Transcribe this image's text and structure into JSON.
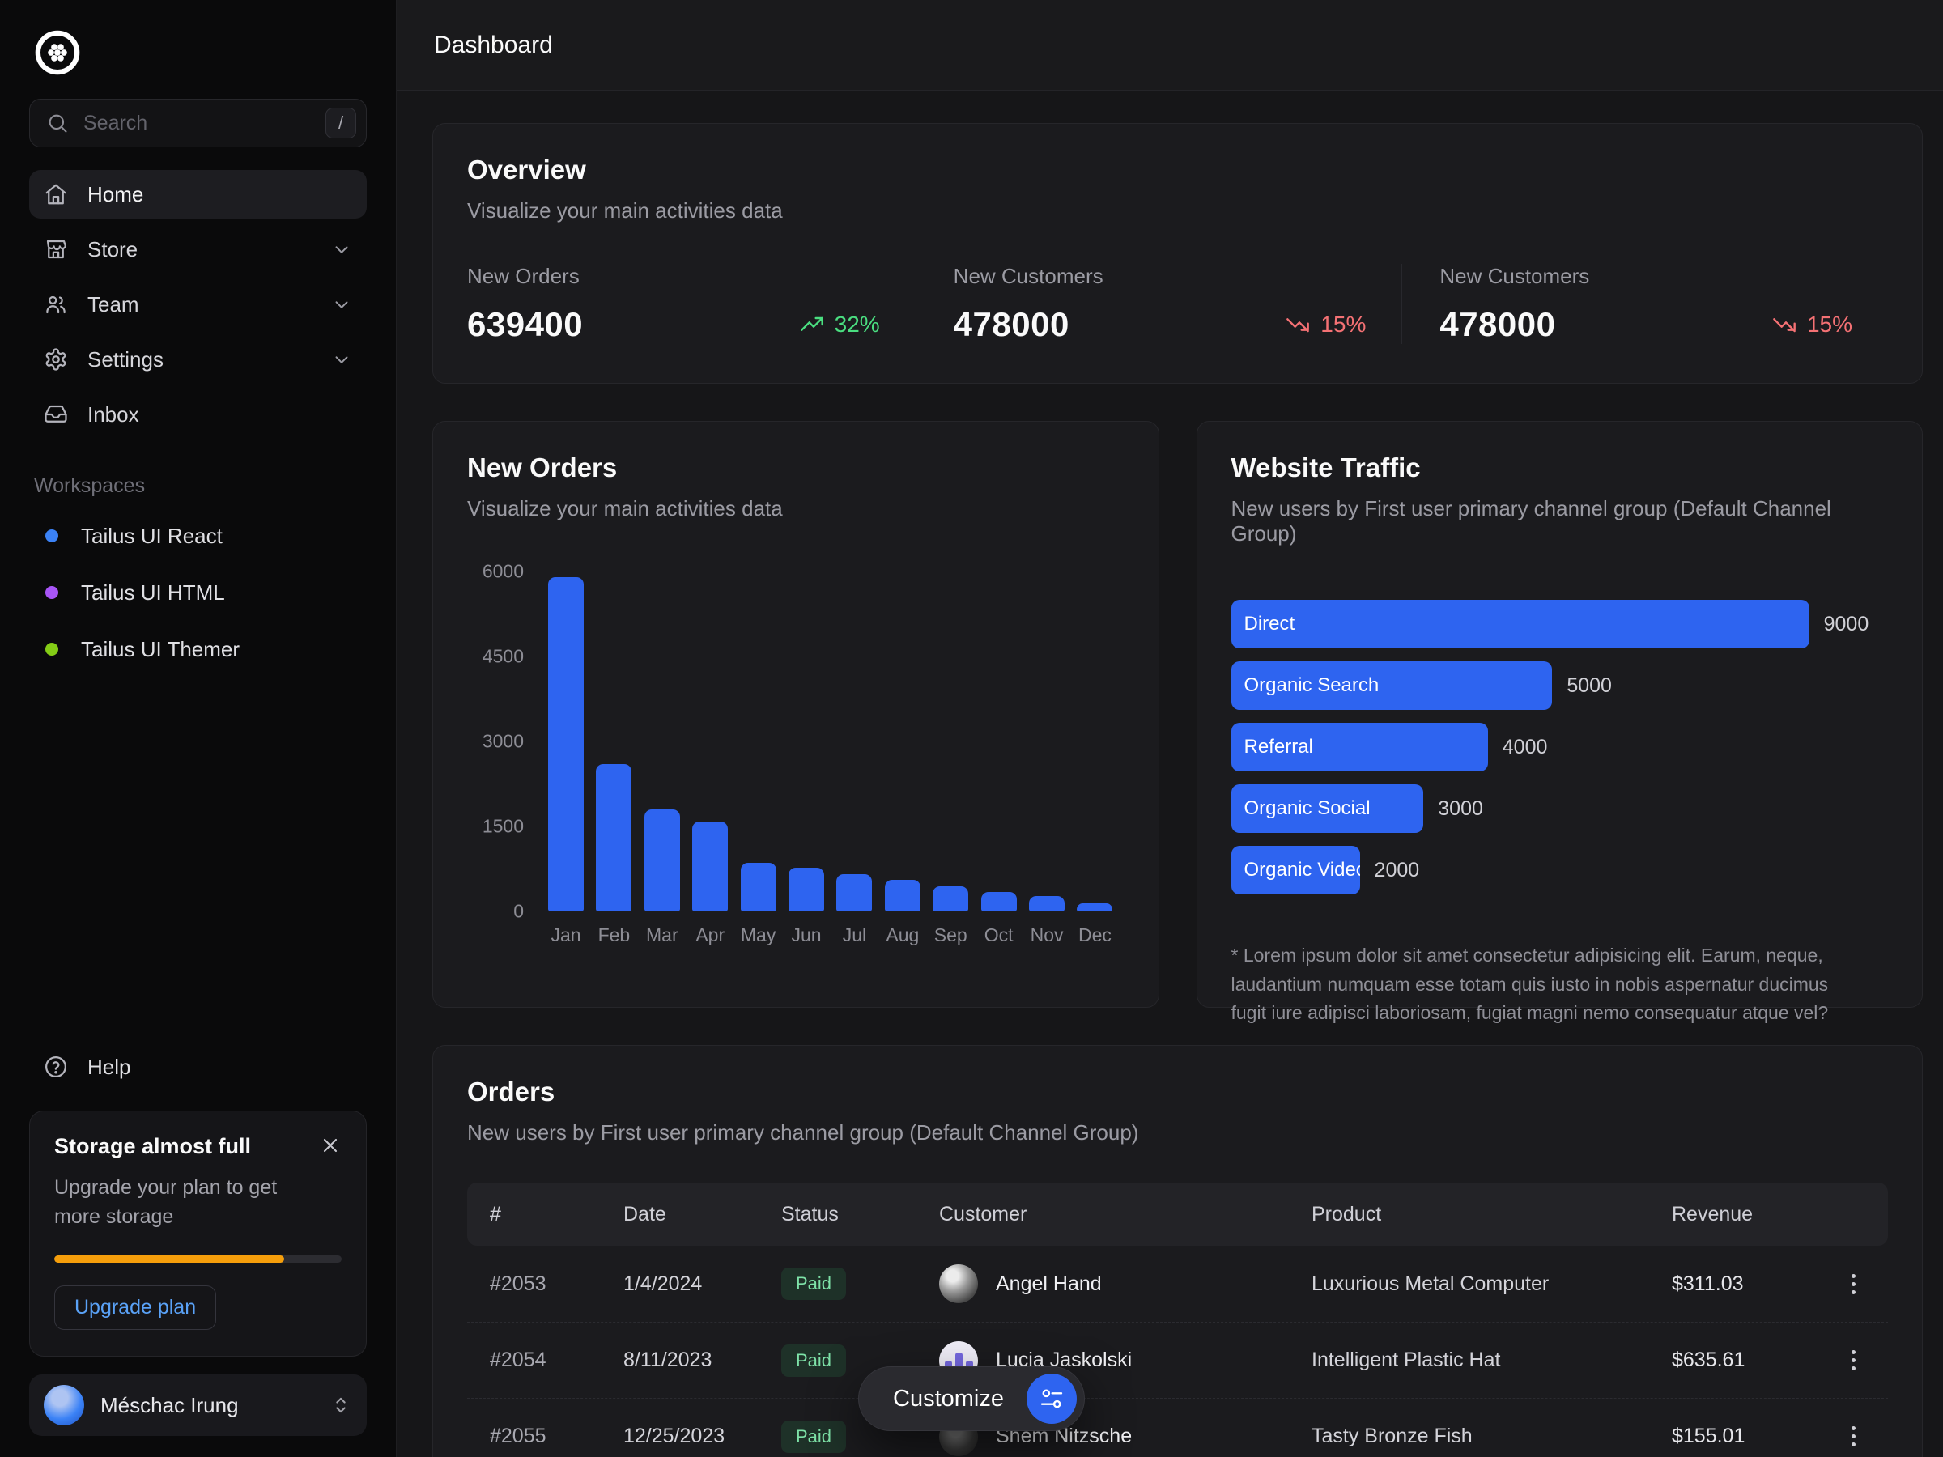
{
  "header": {
    "title": "Dashboard"
  },
  "colors": {
    "accent_blue": "#2e64f0",
    "trend_up_green": "#4ade80",
    "trend_down_red": "#f47174",
    "progress_amber": "#f59e0b"
  },
  "sidebar": {
    "search": {
      "placeholder": "Search",
      "shortcut": "/"
    },
    "nav": [
      {
        "label": "Home",
        "icon": "home",
        "active": true,
        "chevron": false
      },
      {
        "label": "Store",
        "icon": "store",
        "active": false,
        "chevron": true
      },
      {
        "label": "Team",
        "icon": "team",
        "active": false,
        "chevron": true
      },
      {
        "label": "Settings",
        "icon": "settings",
        "active": false,
        "chevron": true
      },
      {
        "label": "Inbox",
        "icon": "inbox",
        "active": false,
        "chevron": false
      }
    ],
    "workspaces_label": "Workspaces",
    "workspaces": [
      {
        "label": "Tailus UI React",
        "dot_color": "#3b82f6"
      },
      {
        "label": "Tailus UI HTML",
        "dot_color": "#a855f7"
      },
      {
        "label": "Tailus UI Themer",
        "dot_color": "#84cc16"
      }
    ],
    "help_label": "Help",
    "storage": {
      "title": "Storage almost full",
      "body": "Upgrade your plan to get more storage",
      "progress_percent": 80,
      "progress_color": "#f59e0b",
      "button_label": "Upgrade plan"
    },
    "user": {
      "name": "Méschac Irung"
    }
  },
  "overview": {
    "title": "Overview",
    "subtitle": "Visualize your main activities data",
    "stats": [
      {
        "label": "New Orders",
        "value": "639400",
        "trend": "32%",
        "direction": "up",
        "color": "#4ade80"
      },
      {
        "label": "New Customers",
        "value": "478000",
        "trend": "15%",
        "direction": "down",
        "color": "#f47174"
      },
      {
        "label": "New Customers",
        "value": "478000",
        "trend": "15%",
        "direction": "down",
        "color": "#f47174"
      }
    ]
  },
  "chart_data": [
    {
      "type": "bar",
      "title": "New Orders",
      "subtitle": "Visualize your main activities data",
      "categories": [
        "Jan",
        "Feb",
        "Mar",
        "Apr",
        "May",
        "Jun",
        "Jul",
        "Aug",
        "Sep",
        "Oct",
        "Nov",
        "Dec"
      ],
      "values": [
        5900,
        2600,
        1800,
        1590,
        860,
        770,
        660,
        560,
        440,
        340,
        270,
        140
      ],
      "xlabel": "",
      "ylabel": "",
      "ylim": [
        0,
        6000
      ],
      "yticks": [
        0,
        1500,
        3000,
        4500,
        6000
      ],
      "grid": "dashed-horizontal",
      "bar_color": "#2e64f0"
    },
    {
      "type": "bar-horizontal",
      "title": "Website Traffic",
      "subtitle": "New users by First user primary channel group (Default Channel Group)",
      "categories": [
        "Direct",
        "Organic Search",
        "Referral",
        "Organic Social",
        "Organic Video"
      ],
      "values": [
        9000,
        5000,
        4000,
        3000,
        2000
      ],
      "xmax": 9000,
      "bar_color": "#2e64f0",
      "footnote": "* Lorem ipsum dolor sit amet consectetur adipisicing elit. Earum, neque, laudantium numquam esse totam quis iusto in nobis aspernatur ducimus fugit iure adipisci laboriosam, fugiat magni nemo consequatur atque vel?"
    }
  ],
  "orders": {
    "title": "Orders",
    "subtitle": "New users by First user primary channel group (Default Channel Group)",
    "columns": [
      "#",
      "Date",
      "Status",
      "Customer",
      "Product",
      "Revenue"
    ],
    "rows": [
      {
        "id": "#2053",
        "date": "1/4/2024",
        "status": "Paid",
        "customer": "Angel Hand",
        "product": "Luxurious Metal Computer",
        "revenue": "$311.03",
        "avatar": "photo-gray"
      },
      {
        "id": "#2054",
        "date": "8/11/2023",
        "status": "Paid",
        "customer": "Lucia Jaskolski",
        "product": "Intelligent Plastic Hat",
        "revenue": "$635.61",
        "avatar": "chart-purple"
      },
      {
        "id": "#2055",
        "date": "12/25/2023",
        "status": "Paid",
        "customer": "Shem Nitzsche",
        "product": "Tasty Bronze Fish",
        "revenue": "$155.01",
        "avatar": "photo-dark"
      }
    ]
  },
  "customize": {
    "label": "Customize"
  }
}
